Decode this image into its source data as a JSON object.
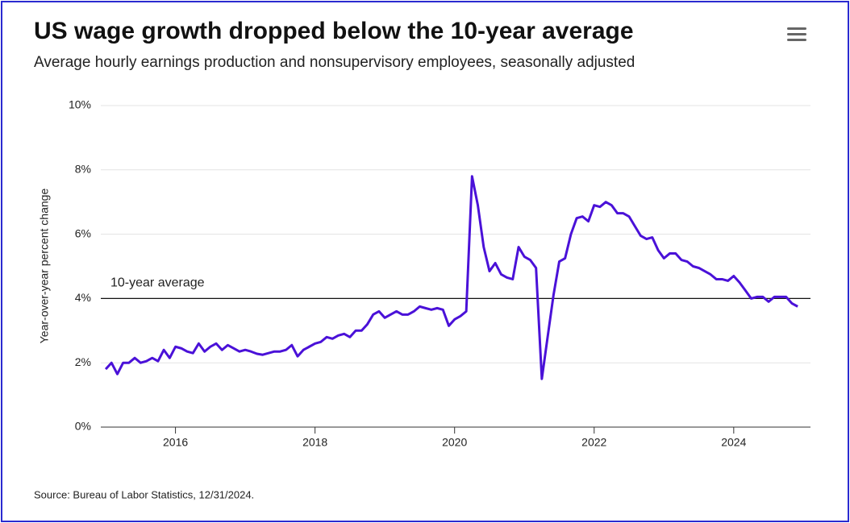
{
  "chart_data": {
    "type": "line",
    "title": "US wage growth dropped below the 10-year average",
    "subtitle": "Average hourly earnings production and nonsupervisory employees, seasonally adjusted",
    "y_label": "Year-over-year percent change",
    "source": "Source: Bureau of Labor Statistics, 12/31/2024.",
    "average": {
      "label": "10-year average",
      "value": 4.0
    },
    "xlim": [
      2014.93,
      2025.1
    ],
    "xticks": [
      2016,
      2018,
      2020,
      2022,
      2024
    ],
    "ylim": [
      0,
      10
    ],
    "yticks": [
      {
        "value": 0,
        "label": "0%"
      },
      {
        "value": 2,
        "label": "2%"
      },
      {
        "value": 4,
        "label": "4%"
      },
      {
        "value": 6,
        "label": "6%"
      },
      {
        "value": 8,
        "label": "8%"
      },
      {
        "value": 10,
        "label": "10%"
      }
    ],
    "grid": true,
    "x": [
      2015.0,
      2015.083,
      2015.167,
      2015.25,
      2015.333,
      2015.417,
      2015.5,
      2015.583,
      2015.667,
      2015.75,
      2015.833,
      2015.917,
      2016.0,
      2016.083,
      2016.167,
      2016.25,
      2016.333,
      2016.417,
      2016.5,
      2016.583,
      2016.667,
      2016.75,
      2016.833,
      2016.917,
      2017.0,
      2017.083,
      2017.167,
      2017.25,
      2017.333,
      2017.417,
      2017.5,
      2017.583,
      2017.667,
      2017.75,
      2017.833,
      2017.917,
      2018.0,
      2018.083,
      2018.167,
      2018.25,
      2018.333,
      2018.417,
      2018.5,
      2018.583,
      2018.667,
      2018.75,
      2018.833,
      2018.917,
      2019.0,
      2019.083,
      2019.167,
      2019.25,
      2019.333,
      2019.417,
      2019.5,
      2019.583,
      2019.667,
      2019.75,
      2019.833,
      2019.917,
      2020.0,
      2020.083,
      2020.167,
      2020.25,
      2020.333,
      2020.417,
      2020.5,
      2020.583,
      2020.667,
      2020.75,
      2020.833,
      2020.917,
      2021.0,
      2021.083,
      2021.167,
      2021.25,
      2021.333,
      2021.417,
      2021.5,
      2021.583,
      2021.667,
      2021.75,
      2021.833,
      2021.917,
      2022.0,
      2022.083,
      2022.167,
      2022.25,
      2022.333,
      2022.417,
      2022.5,
      2022.583,
      2022.667,
      2022.75,
      2022.833,
      2022.917,
      2023.0,
      2023.083,
      2023.167,
      2023.25,
      2023.333,
      2023.417,
      2023.5,
      2023.583,
      2023.667,
      2023.75,
      2023.833,
      2023.917,
      2024.0,
      2024.083,
      2024.167,
      2024.25,
      2024.333,
      2024.417,
      2024.5,
      2024.583,
      2024.667,
      2024.75,
      2024.833,
      2024.917
    ],
    "series": [
      {
        "color": "#4a11d8",
        "values": [
          1.8,
          2.0,
          1.65,
          2.0,
          2.0,
          2.15,
          2.0,
          2.05,
          2.15,
          2.05,
          2.4,
          2.15,
          2.5,
          2.45,
          2.35,
          2.3,
          2.6,
          2.35,
          2.5,
          2.6,
          2.4,
          2.55,
          2.45,
          2.35,
          2.4,
          2.35,
          2.28,
          2.25,
          2.3,
          2.35,
          2.35,
          2.4,
          2.55,
          2.2,
          2.4,
          2.5,
          2.6,
          2.65,
          2.8,
          2.75,
          2.85,
          2.9,
          2.8,
          3.0,
          3.0,
          3.2,
          3.5,
          3.6,
          3.4,
          3.5,
          3.6,
          3.5,
          3.5,
          3.6,
          3.75,
          3.7,
          3.65,
          3.7,
          3.65,
          3.15,
          3.35,
          3.45,
          3.6,
          7.8,
          6.9,
          5.6,
          4.85,
          5.1,
          4.75,
          4.65,
          4.6,
          5.6,
          5.3,
          5.2,
          4.95,
          1.5,
          2.8,
          4.1,
          5.15,
          5.25,
          6.0,
          6.5,
          6.55,
          6.4,
          6.9,
          6.85,
          7.0,
          6.9,
          6.65,
          6.65,
          6.55,
          6.25,
          5.95,
          5.85,
          5.9,
          5.5,
          5.25,
          5.4,
          5.4,
          5.2,
          5.15,
          5.0,
          4.95,
          4.85,
          4.75,
          4.6,
          4.6,
          4.55,
          4.7,
          4.5,
          4.25,
          4.0,
          4.05,
          4.05,
          3.9,
          4.05,
          4.05,
          4.05,
          3.85,
          3.75
        ]
      }
    ]
  }
}
